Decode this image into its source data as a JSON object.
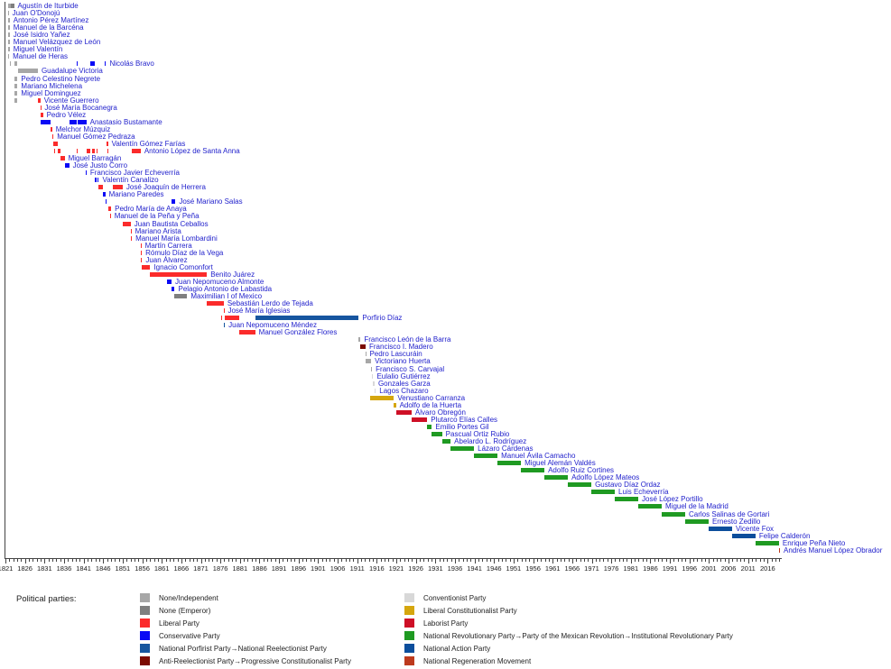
{
  "chart_data": {
    "type": "timeline-gantt",
    "description": "Timeline of Mexican heads of state colored by political party",
    "legend_title": "Political parties:",
    "x_axis": {
      "min": 1821,
      "max": 2019,
      "label_step": 5,
      "tick_labels": [
        1821,
        1826,
        1831,
        1836,
        1841,
        1846,
        1851,
        1856,
        1861,
        1866,
        1871,
        1876,
        1881,
        1886,
        1891,
        1896,
        1901,
        1906,
        1911,
        1916,
        1921,
        1926,
        1931,
        1936,
        1941,
        1946,
        1951,
        1956,
        1961,
        1966,
        1971,
        1976,
        1981,
        1986,
        1991,
        1996,
        2001,
        2006,
        2011,
        2016
      ]
    },
    "label_color": "#2222cc",
    "parties": {
      "none_independent": {
        "label": "None/Independent",
        "color": "#a7a7a7"
      },
      "none_emperor": {
        "label": "None (Emperor)",
        "color": "#7f7f7f"
      },
      "liberal": {
        "label": "Liberal Party",
        "color": "#fb2b2b"
      },
      "conservative": {
        "label": "Conservative Party",
        "color": "#0a0af5"
      },
      "porfirist": {
        "label": "National Porfirist Party→National Reelectionist Party",
        "color": "#16559f"
      },
      "anti_reelectionist": {
        "label": "Anti-Reelectionist Party→Progressive Constitutionalist Party",
        "color": "#7b0b02"
      },
      "conventionist": {
        "label": "Conventionist Party",
        "color": "#d8d8d8"
      },
      "liberal_constitutionalist": {
        "label": "Liberal Constitutionalist Party",
        "color": "#d5a60d"
      },
      "laborist": {
        "label": "Laborist Party",
        "color": "#ce0f26"
      },
      "pri": {
        "label": "National Revolutionary Party→Party of the Mexican Revolution→Institutional Revolutionary Party",
        "color": "#1f9a22"
      },
      "pan": {
        "label": "National Action Party",
        "color": "#0c4e9c"
      },
      "morena": {
        "label": "National Regeneration Movement",
        "color": "#bd3a1d"
      }
    },
    "legend_columns": [
      [
        "none_independent",
        "none_emperor",
        "liberal",
        "conservative",
        "porfirist",
        "anti_reelectionist"
      ],
      [
        "conventionist",
        "liberal_constitutionalist",
        "laborist",
        "pri",
        "pan",
        "morena"
      ]
    ],
    "presidents": [
      {
        "name": "Agustín de Iturbide",
        "segments": [
          [
            "none_independent",
            1821.7,
            1822.4
          ],
          [
            "none_emperor",
            1822.4,
            1823.2
          ]
        ]
      },
      {
        "name": "Juan O'Donojú",
        "segments": [
          [
            "none_independent",
            1821.7,
            1821.85
          ]
        ]
      },
      {
        "name": "Antonio Pérez Martínez",
        "segments": [
          [
            "none_independent",
            1821.7,
            1822.1
          ]
        ]
      },
      {
        "name": "Manuel de la Barcéna",
        "segments": [
          [
            "none_independent",
            1821.7,
            1822.1
          ]
        ]
      },
      {
        "name": "José Isidro Yañez",
        "segments": [
          [
            "none_independent",
            1821.7,
            1822.1
          ]
        ]
      },
      {
        "name": "Manuel Velázquez de León",
        "segments": [
          [
            "none_independent",
            1821.7,
            1822.1
          ]
        ]
      },
      {
        "name": "Miguel Valentín",
        "segments": [
          [
            "none_independent",
            1821.7,
            1822.1
          ]
        ]
      },
      {
        "name": "Manuel de Heras",
        "segments": [
          [
            "none_independent",
            1821.75,
            1821.95
          ]
        ]
      },
      {
        "name": "Nicolás Bravo",
        "segments": [
          [
            "none_independent",
            1822.25,
            1822.45
          ],
          [
            "none_independent",
            1823.3,
            1824.1
          ],
          [
            "conservative",
            1839.2,
            1839.5
          ],
          [
            "conservative",
            1842.8,
            1843.8
          ],
          [
            "conservative",
            1846.5,
            1846.75
          ]
        ]
      },
      {
        "name": "Guadalupe Victoria",
        "segments": [
          [
            "none_independent",
            1824.3,
            1829.3
          ]
        ]
      },
      {
        "name": "Pedro Celestino Negrete",
        "segments": [
          [
            "none_independent",
            1823.3,
            1824.1
          ]
        ]
      },
      {
        "name": "Mariano Michelena",
        "segments": [
          [
            "none_independent",
            1823.3,
            1824.1
          ]
        ]
      },
      {
        "name": "Miguel Dominguez",
        "segments": [
          [
            "none_independent",
            1823.3,
            1824.1
          ]
        ]
      },
      {
        "name": "Vicente Guerrero",
        "segments": [
          [
            "none_independent",
            1823.3,
            1824.1
          ],
          [
            "liberal",
            1829.25,
            1829.95
          ]
        ]
      },
      {
        "name": "José María Bocanegra",
        "segments": [
          [
            "liberal",
            1829.95,
            1830.1
          ]
        ]
      },
      {
        "name": "Pedro Vélez",
        "segments": [
          [
            "liberal",
            1829.9,
            1830.6
          ]
        ]
      },
      {
        "name": "Anastasio Bustamante",
        "segments": [
          [
            "conservative",
            1830.0,
            1832.6
          ],
          [
            "conservative",
            1837.3,
            1839.2
          ],
          [
            "conservative",
            1839.55,
            1841.7
          ]
        ]
      },
      {
        "name": "Melchor Múzquiz",
        "segments": [
          [
            "liberal",
            1832.6,
            1832.95
          ]
        ]
      },
      {
        "name": "Manuel Gómez Pedraza",
        "segments": [
          [
            "liberal",
            1832.95,
            1833.3
          ]
        ]
      },
      {
        "name": "Valentín Gómez Farías",
        "segments": [
          [
            "liberal",
            1833.3,
            1834.35
          ],
          [
            "liberal",
            1846.9,
            1847.25
          ]
        ]
      },
      {
        "name": "Antonio López de Santa Anna",
        "segments": [
          [
            "liberal",
            1833.4,
            1833.6
          ],
          [
            "liberal",
            1834.35,
            1835.1
          ],
          [
            "liberal",
            1839.2,
            1839.5
          ],
          [
            "liberal",
            1841.7,
            1842.8
          ],
          [
            "liberal",
            1843.2,
            1843.75
          ],
          [
            "liberal",
            1844.4,
            1844.65
          ],
          [
            "liberal",
            1847.2,
            1847.4
          ],
          [
            "liberal",
            1853.3,
            1855.6
          ]
        ]
      },
      {
        "name": "Miguel Barragán",
        "segments": [
          [
            "liberal",
            1835.1,
            1836.15
          ]
        ]
      },
      {
        "name": "José Justo Corro",
        "segments": [
          [
            "conservative",
            1836.15,
            1837.3
          ]
        ]
      },
      {
        "name": "Francisco Javier Echeverría",
        "segments": [
          [
            "conservative",
            1841.55,
            1841.75
          ]
        ]
      },
      {
        "name": "Valentín Canalizo",
        "segments": [
          [
            "conservative",
            1843.75,
            1844.4
          ],
          [
            "conservative",
            1844.65,
            1844.9
          ]
        ]
      },
      {
        "name": "José Joaquín de Herrera",
        "segments": [
          [
            "liberal",
            1844.9,
            1845.95
          ],
          [
            "liberal",
            1848.4,
            1851.0
          ]
        ]
      },
      {
        "name": "Mariano Paredes",
        "segments": [
          [
            "conservative",
            1845.95,
            1846.55
          ]
        ]
      },
      {
        "name": "José Mariano Salas",
        "segments": [
          [
            "conservative",
            1846.55,
            1846.95
          ],
          [
            "conservative",
            1863.5,
            1864.5
          ]
        ]
      },
      {
        "name": "Pedro María de Anaya",
        "segments": [
          [
            "liberal",
            1847.25,
            1848.05
          ]
        ]
      },
      {
        "name": "Manuel de la Peña y Peña",
        "segments": [
          [
            "liberal",
            1847.7,
            1847.95
          ]
        ]
      },
      {
        "name": "Juan Bautista Ceballos",
        "segments": [
          [
            "liberal",
            1851.0,
            1853.05
          ]
        ]
      },
      {
        "name": "Mariano Arista",
        "segments": [
          [
            "liberal",
            1853.05,
            1853.25
          ]
        ]
      },
      {
        "name": "Manuel María Lombardini",
        "segments": [
          [
            "liberal",
            1853.1,
            1853.35
          ]
        ]
      },
      {
        "name": "Martín Carrera",
        "segments": [
          [
            "liberal",
            1855.6,
            1855.8
          ]
        ]
      },
      {
        "name": "Rómulo Díaz de la Vega",
        "segments": [
          [
            "liberal",
            1855.7,
            1855.9
          ]
        ]
      },
      {
        "name": "Juan Álvarez",
        "segments": [
          [
            "liberal",
            1855.75,
            1855.95
          ]
        ]
      },
      {
        "name": "Ignacio Comonfort",
        "segments": [
          [
            "liberal",
            1855.95,
            1858.05
          ]
        ]
      },
      {
        "name": "Benito Juárez",
        "segments": [
          [
            "liberal",
            1858.05,
            1872.55
          ]
        ]
      },
      {
        "name": "Juan Nepomuceno Almonte",
        "segments": [
          [
            "conservative",
            1862.4,
            1863.5
          ]
        ]
      },
      {
        "name": "Pelagio Antonio de Labastida",
        "segments": [
          [
            "conservative",
            1863.5,
            1864.3
          ]
        ]
      },
      {
        "name": "Maximilian I of Mexico",
        "segments": [
          [
            "none_emperor",
            1864.3,
            1867.5
          ]
        ]
      },
      {
        "name": "Sebastián Lerdo de Tejada",
        "segments": [
          [
            "liberal",
            1872.55,
            1876.85
          ]
        ]
      },
      {
        "name": "José María Iglesias",
        "segments": [
          [
            "liberal",
            1876.8,
            1877.0
          ]
        ]
      },
      {
        "name": "Porfirio Díaz",
        "segments": [
          [
            "liberal",
            1876.15,
            1876.35
          ],
          [
            "liberal",
            1877.1,
            1880.9
          ],
          [
            "porfirist",
            1884.9,
            1911.4
          ]
        ]
      },
      {
        "name": "Juan Nepomuceno Méndez",
        "segments": [
          [
            "porfirist",
            1876.9,
            1877.15
          ]
        ]
      },
      {
        "name": "Manuel González Flores",
        "segments": [
          [
            "liberal",
            1880.9,
            1884.9
          ]
        ]
      },
      {
        "name": "Francisco León de la Barra",
        "segments": [
          [
            "none_independent",
            1911.4,
            1911.85
          ]
        ]
      },
      {
        "name": "Francisco I. Madero",
        "segments": [
          [
            "anti_reelectionist",
            1911.85,
            1913.15
          ]
        ]
      },
      {
        "name": "Pedro Lascuráin",
        "segments": [
          [
            "none_independent",
            1913.1,
            1913.25
          ]
        ]
      },
      {
        "name": "Victoriano Huerta",
        "segments": [
          [
            "none_independent",
            1913.25,
            1914.55
          ]
        ]
      },
      {
        "name": "Francisco S. Carvajal",
        "segments": [
          [
            "none_independent",
            1914.55,
            1914.8
          ]
        ]
      },
      {
        "name": "Eulalio Gutiérrez",
        "segments": [
          [
            "conventionist",
            1914.85,
            1915.1
          ]
        ]
      },
      {
        "name": "Gonzales Garza",
        "segments": [
          [
            "conventionist",
            1915.1,
            1915.45
          ]
        ]
      },
      {
        "name": "Lagos Chazaro",
        "segments": [
          [
            "conventionist",
            1915.45,
            1915.75
          ]
        ]
      },
      {
        "name": "Venustiano Carranza",
        "segments": [
          [
            "liberal_constitutionalist",
            1914.3,
            1920.4
          ]
        ]
      },
      {
        "name": "Adolfo de la Huerta",
        "segments": [
          [
            "liberal_constitutionalist",
            1920.4,
            1920.9
          ]
        ]
      },
      {
        "name": "Álvaro Obregón",
        "segments": [
          [
            "laborist",
            1920.9,
            1924.9
          ]
        ]
      },
      {
        "name": "Plutarco Elías Calles",
        "segments": [
          [
            "laborist",
            1924.9,
            1928.9
          ]
        ]
      },
      {
        "name": "Emilio Portes Gil",
        "segments": [
          [
            "pri",
            1928.9,
            1930.1
          ]
        ]
      },
      {
        "name": "Pascual Ortiz Rubio",
        "segments": [
          [
            "pri",
            1930.1,
            1932.7
          ]
        ]
      },
      {
        "name": "Abelardo L. Rodríguez",
        "segments": [
          [
            "pri",
            1932.7,
            1934.9
          ]
        ]
      },
      {
        "name": "Lázaro Cárdenas",
        "segments": [
          [
            "pri",
            1934.9,
            1940.9
          ]
        ]
      },
      {
        "name": "Manuel Ávila Camacho",
        "segments": [
          [
            "pri",
            1940.9,
            1946.9
          ]
        ]
      },
      {
        "name": "Miguel Alemán Valdés",
        "segments": [
          [
            "pri",
            1946.9,
            1952.9
          ]
        ]
      },
      {
        "name": "Adolfo Ruiz Cortines",
        "segments": [
          [
            "pri",
            1952.9,
            1958.9
          ]
        ]
      },
      {
        "name": "Adolfo López Mateos",
        "segments": [
          [
            "pri",
            1958.9,
            1964.9
          ]
        ]
      },
      {
        "name": "Gustavo Díaz Ordaz",
        "segments": [
          [
            "pri",
            1964.9,
            1970.9
          ]
        ]
      },
      {
        "name": "Luis Echeverría",
        "segments": [
          [
            "pri",
            1970.9,
            1976.9
          ]
        ]
      },
      {
        "name": "José López Portillo",
        "segments": [
          [
            "pri",
            1976.9,
            1982.9
          ]
        ]
      },
      {
        "name": "Miguel de la Madrid",
        "segments": [
          [
            "pri",
            1982.9,
            1988.9
          ]
        ]
      },
      {
        "name": "Carlos Salinas de Gortari",
        "segments": [
          [
            "pri",
            1988.9,
            1994.9
          ]
        ]
      },
      {
        "name": "Ernesto Zedillo",
        "segments": [
          [
            "pri",
            1994.9,
            2000.9
          ]
        ]
      },
      {
        "name": "Vicente Fox",
        "segments": [
          [
            "pan",
            2000.9,
            2006.9
          ]
        ]
      },
      {
        "name": "Felipe Calderón",
        "segments": [
          [
            "pan",
            2006.9,
            2012.9
          ]
        ]
      },
      {
        "name": "Enrique Peña Nieto",
        "segments": [
          [
            "pri",
            2012.9,
            2018.9
          ]
        ]
      },
      {
        "name": "Andrés Manuel López Obrador",
        "segments": [
          [
            "morena",
            2018.9,
            2019.15
          ]
        ]
      }
    ]
  }
}
